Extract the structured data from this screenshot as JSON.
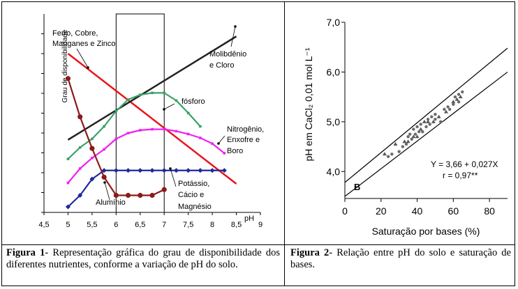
{
  "figure1": {
    "caption_label": "Figura 1",
    "caption_text": "- Representação gráfica do grau de disponibilidade dos diferentes nutrientes, conforme a variação de pH do solo."
  },
  "figure2": {
    "caption_label": "Figura 2",
    "caption_text": "- Relação entre pH do solo e saturação de bases."
  },
  "chart_data": [
    {
      "type": "line",
      "title": "",
      "xlabel": "pH",
      "ylabel": "Grau de disponibilidade",
      "xlim": [
        4.5,
        9
      ],
      "xticks": [
        "4,5",
        "5",
        "5,5",
        "6",
        "6,5",
        "7",
        "7,5",
        "8",
        "8,5",
        "9"
      ],
      "ylim": [
        0,
        10
      ],
      "shaded_region": [
        6,
        7
      ],
      "series": [
        {
          "name": "Ferro, Cobre, Manganes e Zinco",
          "color": "#e8141b",
          "marker": "none",
          "x": [
            5,
            8.5
          ],
          "y": [
            8.0,
            1.2
          ]
        },
        {
          "name": "Molibdênio e Cloro",
          "color": "#222222",
          "marker": "none",
          "x": [
            5,
            8.5
          ],
          "y": [
            3.5,
            8.9
          ]
        },
        {
          "name": "fósforo",
          "color": "#3aa06a",
          "marker": "square",
          "x": [
            5,
            5.25,
            5.5,
            5.75,
            6.0,
            6.25,
            6.5,
            6.75,
            7.0,
            7.25,
            7.5,
            7.75
          ],
          "y": [
            2.5,
            3.1,
            3.55,
            4.2,
            5.0,
            5.6,
            5.85,
            5.95,
            5.95,
            5.55,
            4.9,
            4.2
          ]
        },
        {
          "name": "Nitrogênio, Enxofre e Boro",
          "color": "#ee22ee",
          "marker": "square",
          "x": [
            5,
            5.25,
            5.5,
            5.75,
            6.0,
            6.25,
            6.5,
            6.75,
            7.0,
            7.25,
            7.5,
            7.75,
            8.0,
            8.25
          ],
          "y": [
            1.25,
            2.0,
            2.55,
            3.0,
            3.55,
            3.85,
            4.0,
            4.05,
            4.05,
            3.95,
            3.8,
            3.6,
            3.3,
            2.8
          ]
        },
        {
          "name": "Potássio, Cácio e Magnésio",
          "color": "#1f2a9a",
          "marker": "diamond",
          "x": [
            5,
            5.25,
            5.5,
            5.75,
            6.0,
            6.25,
            6.5,
            6.75,
            7.0,
            7.25,
            7.5,
            7.75,
            8.0,
            8.25
          ],
          "y": [
            0.0,
            0.6,
            1.45,
            1.9,
            1.9,
            1.9,
            1.9,
            1.9,
            1.9,
            1.9,
            1.9,
            1.9,
            1.9,
            1.9
          ]
        },
        {
          "name": "Alumínio",
          "color": "#8b1a1a",
          "marker": "circle",
          "x": [
            5,
            5.25,
            5.5,
            5.75,
            6.0,
            6.25,
            6.5,
            6.75,
            7.0
          ],
          "y": [
            6.7,
            4.7,
            3.05,
            1.55,
            0.6,
            0.6,
            0.6,
            0.6,
            0.9
          ]
        }
      ],
      "annotations": [
        "Ferro, Cobre,",
        "Manganes e Zinco",
        "Molibdênio",
        "e Cloro",
        "fósforo",
        "Nitrogênio,",
        "Enxofre e",
        "Boro",
        "Potássio,",
        "Cácio e",
        "Magnésio",
        "Alumínio"
      ]
    },
    {
      "type": "scatter",
      "title": "",
      "panel_label": "B",
      "xlabel": "Saturação por bases (%)",
      "ylabel": "pH em CaCl₂ 0,01 mol L⁻¹",
      "xlim": [
        0,
        90
      ],
      "ylim": [
        3.3,
        7.0
      ],
      "xticks": [
        "0",
        "20",
        "40",
        "60",
        "80"
      ],
      "yticks": [
        "4,0",
        "5,0",
        "6,0",
        "7,0"
      ],
      "equation": "Y = 3,66 + 0,027X",
      "r": "r = 0,97**",
      "fit_lines": [
        {
          "x": [
            0,
            90
          ],
          "y": [
            3.78,
            6.48
          ]
        },
        {
          "x": [
            0,
            90
          ],
          "y": [
            3.5,
            6.0
          ]
        }
      ],
      "points": {
        "x": [
          22,
          24,
          26,
          28,
          30,
          32,
          33,
          34,
          35,
          35,
          36,
          37,
          38,
          38,
          39,
          40,
          40,
          41,
          42,
          42,
          43,
          44,
          45,
          46,
          46,
          47,
          48,
          49,
          50,
          50,
          52,
          53,
          55,
          56,
          57,
          58,
          60,
          60,
          61,
          62,
          63,
          63,
          64,
          65
        ],
        "y": [
          4.35,
          4.3,
          4.35,
          4.55,
          4.4,
          4.5,
          4.6,
          4.55,
          4.7,
          4.6,
          4.75,
          4.65,
          4.7,
          4.85,
          4.75,
          4.7,
          4.9,
          4.8,
          4.85,
          4.95,
          4.8,
          5.0,
          4.9,
          5.05,
          5.0,
          4.95,
          5.1,
          5.0,
          5.05,
          5.15,
          5.1,
          5.0,
          5.25,
          5.2,
          5.3,
          5.25,
          5.4,
          5.35,
          5.5,
          5.45,
          5.55,
          5.4,
          5.5,
          5.6
        ]
      }
    }
  ]
}
